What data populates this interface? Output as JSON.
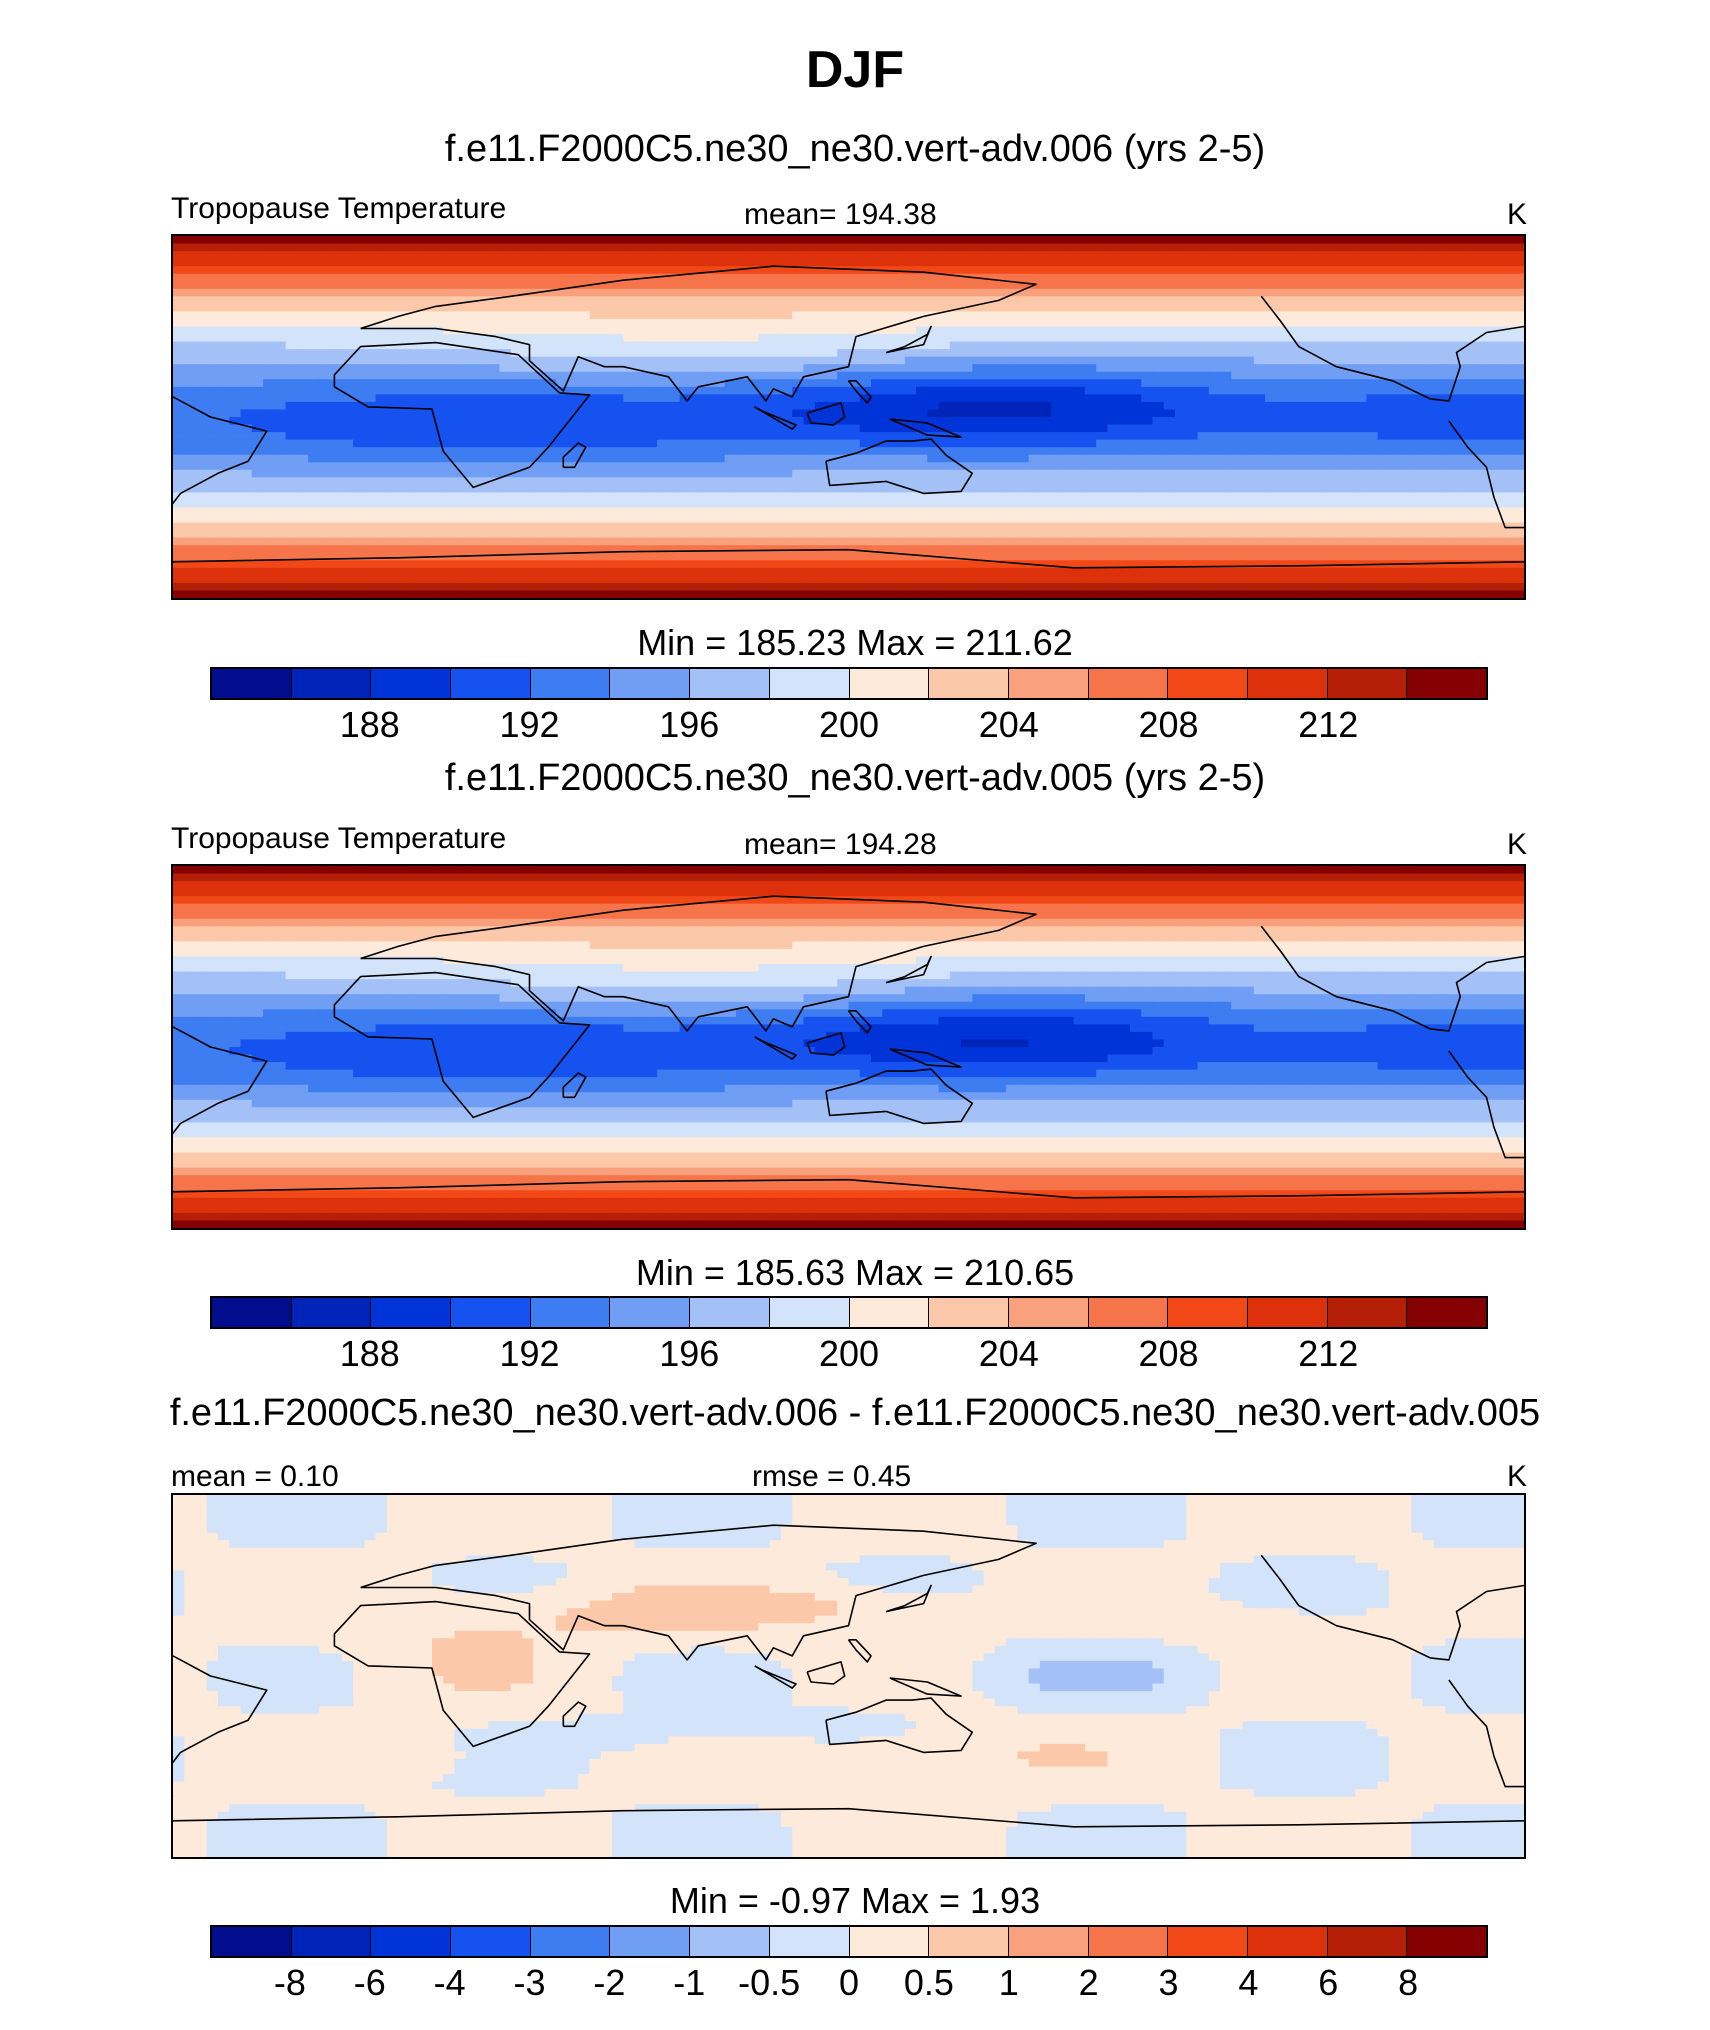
{
  "title": "DJF",
  "units": "K",
  "chart_data": [
    {
      "type": "heatmap",
      "panel_title": "f.e11.F2000C5.ne30_ne30.vert-adv.006 (yrs 2-5)",
      "variable": "Tropopause Temperature",
      "mean_text": "mean= 194.38",
      "units": "K",
      "mean": 194.38,
      "min": 185.23,
      "max": 211.62,
      "minmax_text": "Min = 185.23 Max = 211.62",
      "lon_range": [
        -60,
        300
      ],
      "lat_range": [
        -90,
        90
      ],
      "colorbar_ticks": [
        "188",
        "192",
        "196",
        "200",
        "204",
        "208",
        "212"
      ],
      "colorbar_levels": [
        186,
        188,
        190,
        192,
        194,
        196,
        198,
        200,
        202,
        204,
        206,
        208,
        210,
        212,
        214
      ]
    },
    {
      "type": "heatmap",
      "panel_title": "f.e11.F2000C5.ne30_ne30.vert-adv.005 (yrs 2-5)",
      "variable": "Tropopause Temperature",
      "mean_text": "mean= 194.28",
      "units": "K",
      "mean": 194.28,
      "min": 185.63,
      "max": 210.65,
      "minmax_text": "Min = 185.63 Max = 210.65",
      "lon_range": [
        -60,
        300
      ],
      "lat_range": [
        -90,
        90
      ],
      "colorbar_ticks": [
        "188",
        "192",
        "196",
        "200",
        "204",
        "208",
        "212"
      ],
      "colorbar_levels": [
        186,
        188,
        190,
        192,
        194,
        196,
        198,
        200,
        202,
        204,
        206,
        208,
        210,
        212,
        214
      ]
    },
    {
      "type": "heatmap",
      "panel_title": "f.e11.F2000C5.ne30_ne30.vert-adv.006 - f.e11.F2000C5.ne30_ne30.vert-adv.005",
      "mean_text": "mean =   0.10",
      "rmse_text": "rmse =   0.45",
      "units": "K",
      "mean": 0.1,
      "rmse": 0.45,
      "min": -0.97,
      "max": 1.93,
      "minmax_text": "Min =  -0.97 Max =   1.93",
      "lon_range": [
        -60,
        300
      ],
      "lat_range": [
        -90,
        90
      ],
      "colorbar_ticks": [
        "-8",
        "-6",
        "-4",
        "-3",
        "-2",
        "-1",
        "-0.5",
        "0",
        "0.5",
        "1",
        "2",
        "3",
        "4",
        "6",
        "8"
      ]
    }
  ],
  "colors": {
    "scale": [
      "#000e8e",
      "#0024b7",
      "#0034d9",
      "#1652f0",
      "#3d7cf1",
      "#6f9ef4",
      "#a3c0f7",
      "#d2e3fa",
      "#feeadb",
      "#fcc8aa",
      "#f9a07c",
      "#f6744a",
      "#f24817",
      "#dc310a",
      "#b51f08",
      "#850000"
    ],
    "land_outline": "#000000"
  }
}
